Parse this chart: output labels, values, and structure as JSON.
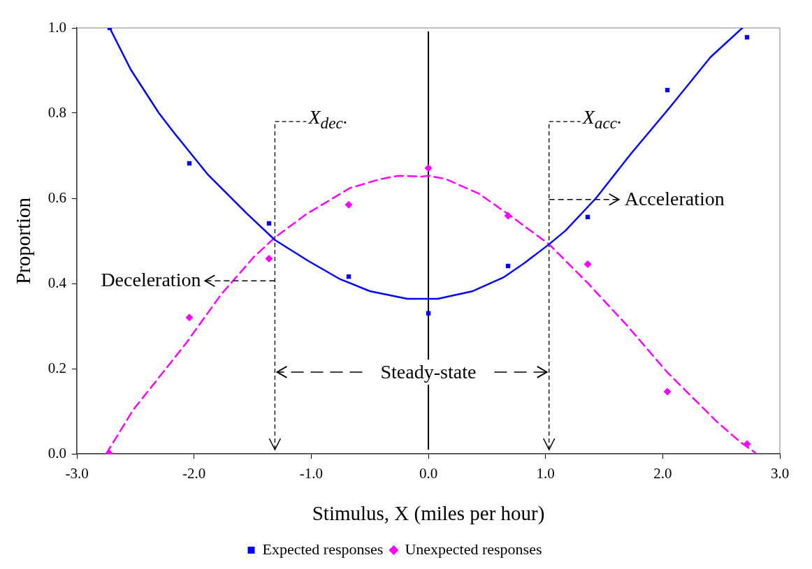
{
  "chart_data": {
    "type": "scatter",
    "xlabel": "Stimulus, X (miles per hour)",
    "ylabel": "Proportion",
    "xlim": [
      -3,
      3
    ],
    "xticks": [
      {
        "value": -3,
        "label": "-3.0"
      },
      {
        "value": -2,
        "label": "-2.0"
      },
      {
        "value": -1,
        "label": "-1.0"
      },
      {
        "value": 0,
        "label": "0.0"
      },
      {
        "value": 1,
        "label": "1.0"
      },
      {
        "value": 2,
        "label": "2.0"
      },
      {
        "value": 3,
        "label": "3.0"
      }
    ],
    "ylim": [
      0,
      1
    ],
    "yticks": [
      {
        "value": 0,
        "label": "0.0"
      },
      {
        "value": 0.2,
        "label": "0.2"
      },
      {
        "value": 0.4,
        "label": "0.4"
      },
      {
        "value": 0.6,
        "label": "0.6"
      },
      {
        "value": 0.8,
        "label": "0.8"
      },
      {
        "value": 1,
        "label": "1.0"
      }
    ],
    "grid": false,
    "legend": "bottom",
    "series": [
      {
        "name": "Expected responses",
        "type": "scatter",
        "marker": "square",
        "color": "#0000ff",
        "x": [
          -2.72,
          -2.04,
          -1.36,
          -0.68,
          0,
          0.68,
          1.36,
          2.04,
          2.72
        ],
        "values": [
          1.0,
          0.682,
          0.541,
          0.416,
          0.33,
          0.441,
          0.556,
          0.854,
          0.978
        ]
      },
      {
        "name": "Unexpected responses",
        "type": "scatter",
        "marker": "diamond",
        "color": "#ff00ff",
        "x": [
          -2.72,
          -2.04,
          -1.36,
          -0.68,
          0,
          0.68,
          1.36,
          2.04,
          2.72
        ],
        "values": [
          0,
          0.32,
          0.458,
          0.585,
          0.671,
          0.559,
          0.445,
          0.146,
          0.023
        ]
      },
      {
        "type": "line",
        "marker": "none",
        "line_style": "solid",
        "color": "#0000ff",
        "x": [
          -2.72,
          -2.54,
          -2.3,
          -2.16,
          -1.88,
          -1.56,
          -1.31,
          -1.02,
          -0.76,
          -0.5,
          -0.18,
          0,
          0.08,
          0.38,
          0.64,
          0.82,
          1.03,
          1.17,
          1.43,
          1.73,
          2.06,
          2.41,
          2.68
        ],
        "values": [
          1.0,
          0.902,
          0.8,
          0.75,
          0.655,
          0.567,
          0.502,
          0.452,
          0.411,
          0.382,
          0.364,
          0.364,
          0.364,
          0.382,
          0.414,
          0.448,
          0.492,
          0.524,
          0.6,
          0.705,
          0.813,
          0.932,
          1.0
        ]
      },
      {
        "type": "line",
        "marker": "none",
        "line_style": "dashed",
        "color": "#ff00ff",
        "x": [
          -2.75,
          -2.52,
          -2.07,
          -1.77,
          -1.49,
          -1.31,
          -1.04,
          -0.67,
          -0.41,
          -0.25,
          -0.06,
          0,
          0.15,
          0.43,
          0.68,
          1.03,
          1.36,
          1.69,
          2.04,
          2.46,
          2.66,
          2.79
        ],
        "values": [
          0,
          0.103,
          0.259,
          0.374,
          0.462,
          0.508,
          0.563,
          0.624,
          0.645,
          0.653,
          0.651,
          0.653,
          0.645,
          0.611,
          0.563,
          0.492,
          0.401,
          0.303,
          0.191,
          0.076,
          0.028,
          0.003
        ]
      }
    ],
    "ref_lines": [
      {
        "axis": "x",
        "value": 0,
        "color": "#000000",
        "line_style": "solid"
      },
      {
        "axis": "x",
        "value": -1.31,
        "label": "X$_{dec}$.",
        "color": "#000000",
        "line_style": "dashed"
      },
      {
        "axis": "x",
        "value": 1.03,
        "label": "X$_{acc}$.",
        "color": "#000000",
        "line_style": "dashed"
      }
    ],
    "annotations": [
      {
        "text": "Deceleration",
        "x": -1.31,
        "y": 0.406
      },
      {
        "text": "Acceleration",
        "x": 1.03,
        "y": 0.597
      },
      {
        "text": "Steady-state",
        "x": 0,
        "y": 0.192
      }
    ]
  }
}
